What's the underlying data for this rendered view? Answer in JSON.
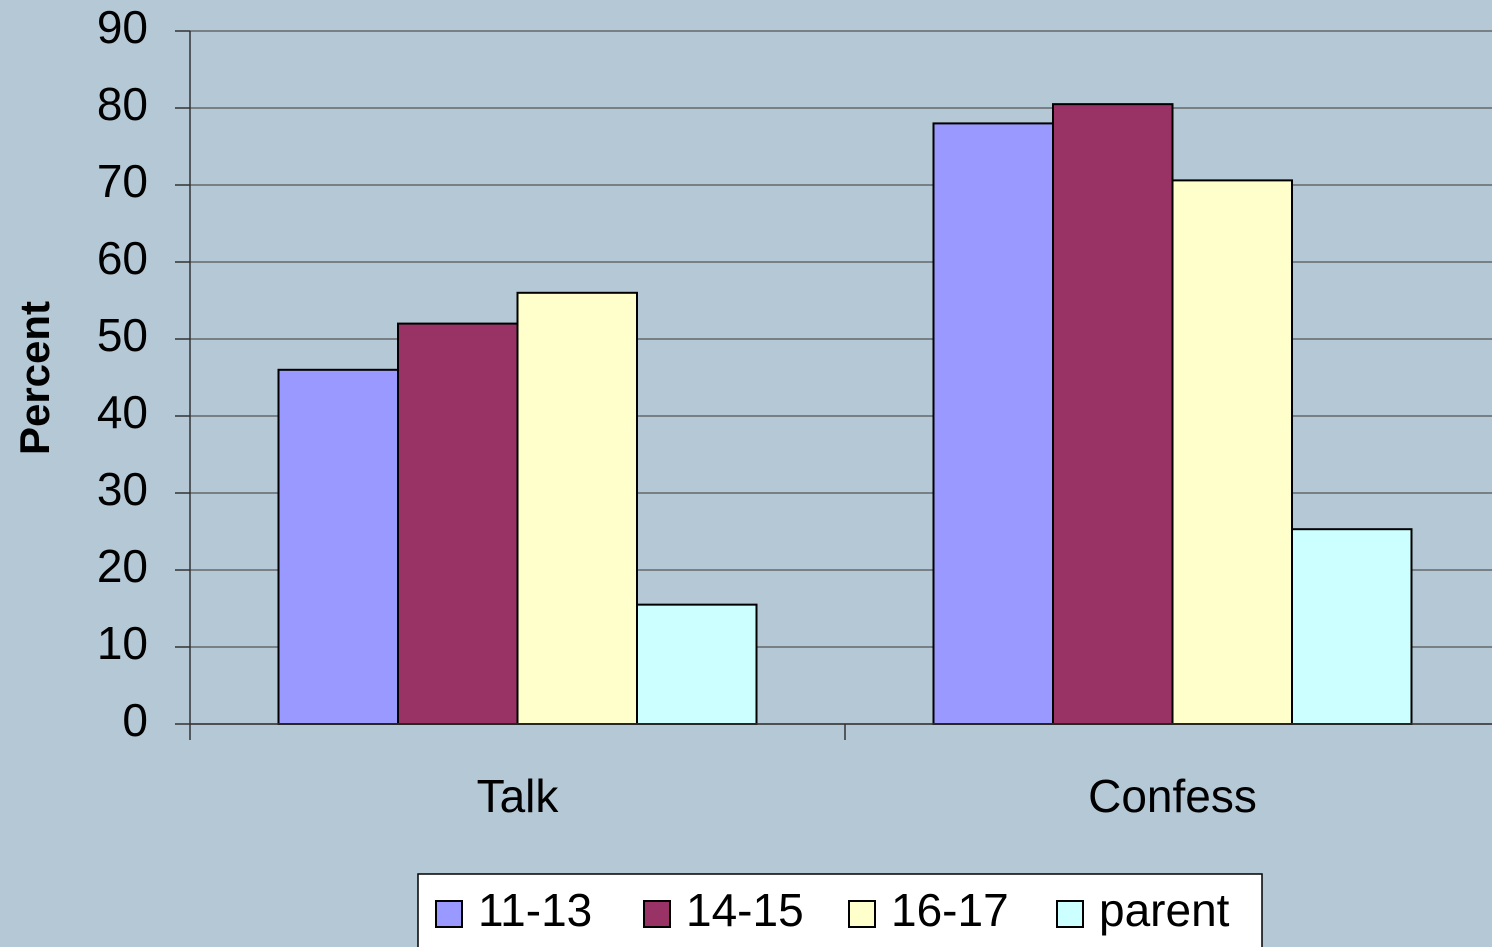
{
  "chart_data": {
    "type": "bar",
    "y_label": "Percent",
    "categories": [
      "Talk",
      "Confess"
    ],
    "series": [
      {
        "name": "11-13",
        "color": "#9999ff",
        "values": [
          46,
          78
        ]
      },
      {
        "name": "14-15",
        "color": "#993366",
        "values": [
          52,
          80.5
        ]
      },
      {
        "name": "16-17",
        "color": "#ffffcc",
        "values": [
          56,
          70.6
        ]
      },
      {
        "name": "parent",
        "color": "#ccffff",
        "values": [
          15.5,
          25.3
        ]
      }
    ],
    "ylim": [
      0,
      90
    ],
    "yticks": [
      0,
      10,
      20,
      30,
      40,
      50,
      60,
      70,
      80,
      90
    ],
    "grid": true,
    "legend": "bottom"
  }
}
